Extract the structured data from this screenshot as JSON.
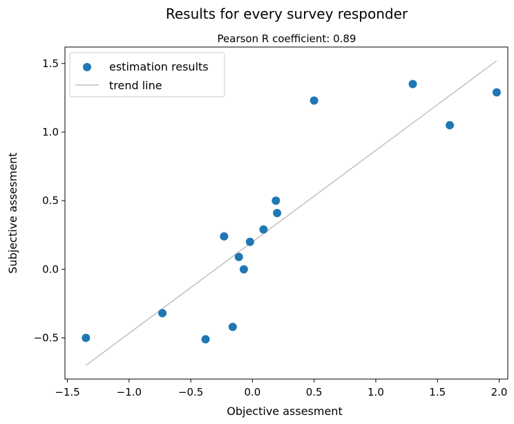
{
  "chart_data": {
    "type": "scatter",
    "title": "Results for every survey responder",
    "subtitle": "Pearson R coefficient: 0.89",
    "xlabel": "Objective assesment",
    "ylabel": "Subjective assesment",
    "xlim": [
      -1.52,
      2.07
    ],
    "ylim": [
      -0.8,
      1.62
    ],
    "xticks": [
      -1.5,
      -1.0,
      -0.5,
      0.0,
      0.5,
      1.0,
      1.5,
      2.0
    ],
    "xtick_labels": [
      "−1.5",
      "−1.0",
      "−0.5",
      "0.0",
      "0.5",
      "1.0",
      "1.5",
      "2.0"
    ],
    "yticks": [
      -0.5,
      0.0,
      0.5,
      1.0,
      1.5
    ],
    "ytick_labels": [
      "−0.5",
      "0.0",
      "0.5",
      "1.0",
      "1.5"
    ],
    "grid": false,
    "legend_position": "top-left",
    "series": [
      {
        "name": "estimation results",
        "kind": "points",
        "color": "#1f77b4",
        "points": [
          {
            "x": -1.35,
            "y": -0.5
          },
          {
            "x": -0.73,
            "y": -0.32
          },
          {
            "x": -0.38,
            "y": -0.51
          },
          {
            "x": -0.23,
            "y": 0.24
          },
          {
            "x": -0.16,
            "y": -0.42
          },
          {
            "x": -0.11,
            "y": 0.09
          },
          {
            "x": -0.07,
            "y": 0.0
          },
          {
            "x": -0.02,
            "y": 0.2
          },
          {
            "x": 0.09,
            "y": 0.29
          },
          {
            "x": 0.19,
            "y": 0.5
          },
          {
            "x": 0.2,
            "y": 0.41
          },
          {
            "x": 0.5,
            "y": 1.23
          },
          {
            "x": 1.3,
            "y": 1.35
          },
          {
            "x": 1.6,
            "y": 1.05
          },
          {
            "x": 1.98,
            "y": 1.29
          }
        ]
      },
      {
        "name": "trend line",
        "kind": "line",
        "color": "#c0c0c0",
        "points": [
          {
            "x": -1.35,
            "y": -0.7
          },
          {
            "x": 1.98,
            "y": 1.52
          }
        ]
      }
    ]
  }
}
